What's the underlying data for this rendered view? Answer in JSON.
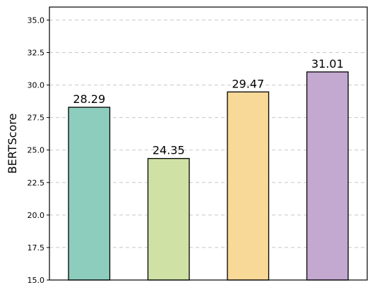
{
  "chart_data": {
    "type": "bar",
    "title": "",
    "xlabel": "",
    "ylabel": "BERTScore",
    "categories": [
      "",
      "",
      "",
      ""
    ],
    "values": [
      28.29,
      24.35,
      29.47,
      31.01
    ],
    "value_labels": [
      "28.29",
      "24.35",
      "29.47",
      "31.01"
    ],
    "colors": [
      "#8dcdbd",
      "#d0e1a6",
      "#f9d997",
      "#c3a8cf"
    ],
    "edge_color": "#000000",
    "ylim": [
      15.0,
      36.0
    ],
    "yticks": [
      15.0,
      17.5,
      20.0,
      22.5,
      25.0,
      27.5,
      30.0,
      32.5,
      35.0
    ],
    "ytick_labels": [
      "15.0",
      "17.5",
      "20.0",
      "22.5",
      "25.0",
      "27.5",
      "30.0",
      "32.5",
      "35.0"
    ],
    "grid": "y-dashed",
    "legend": "none"
  }
}
